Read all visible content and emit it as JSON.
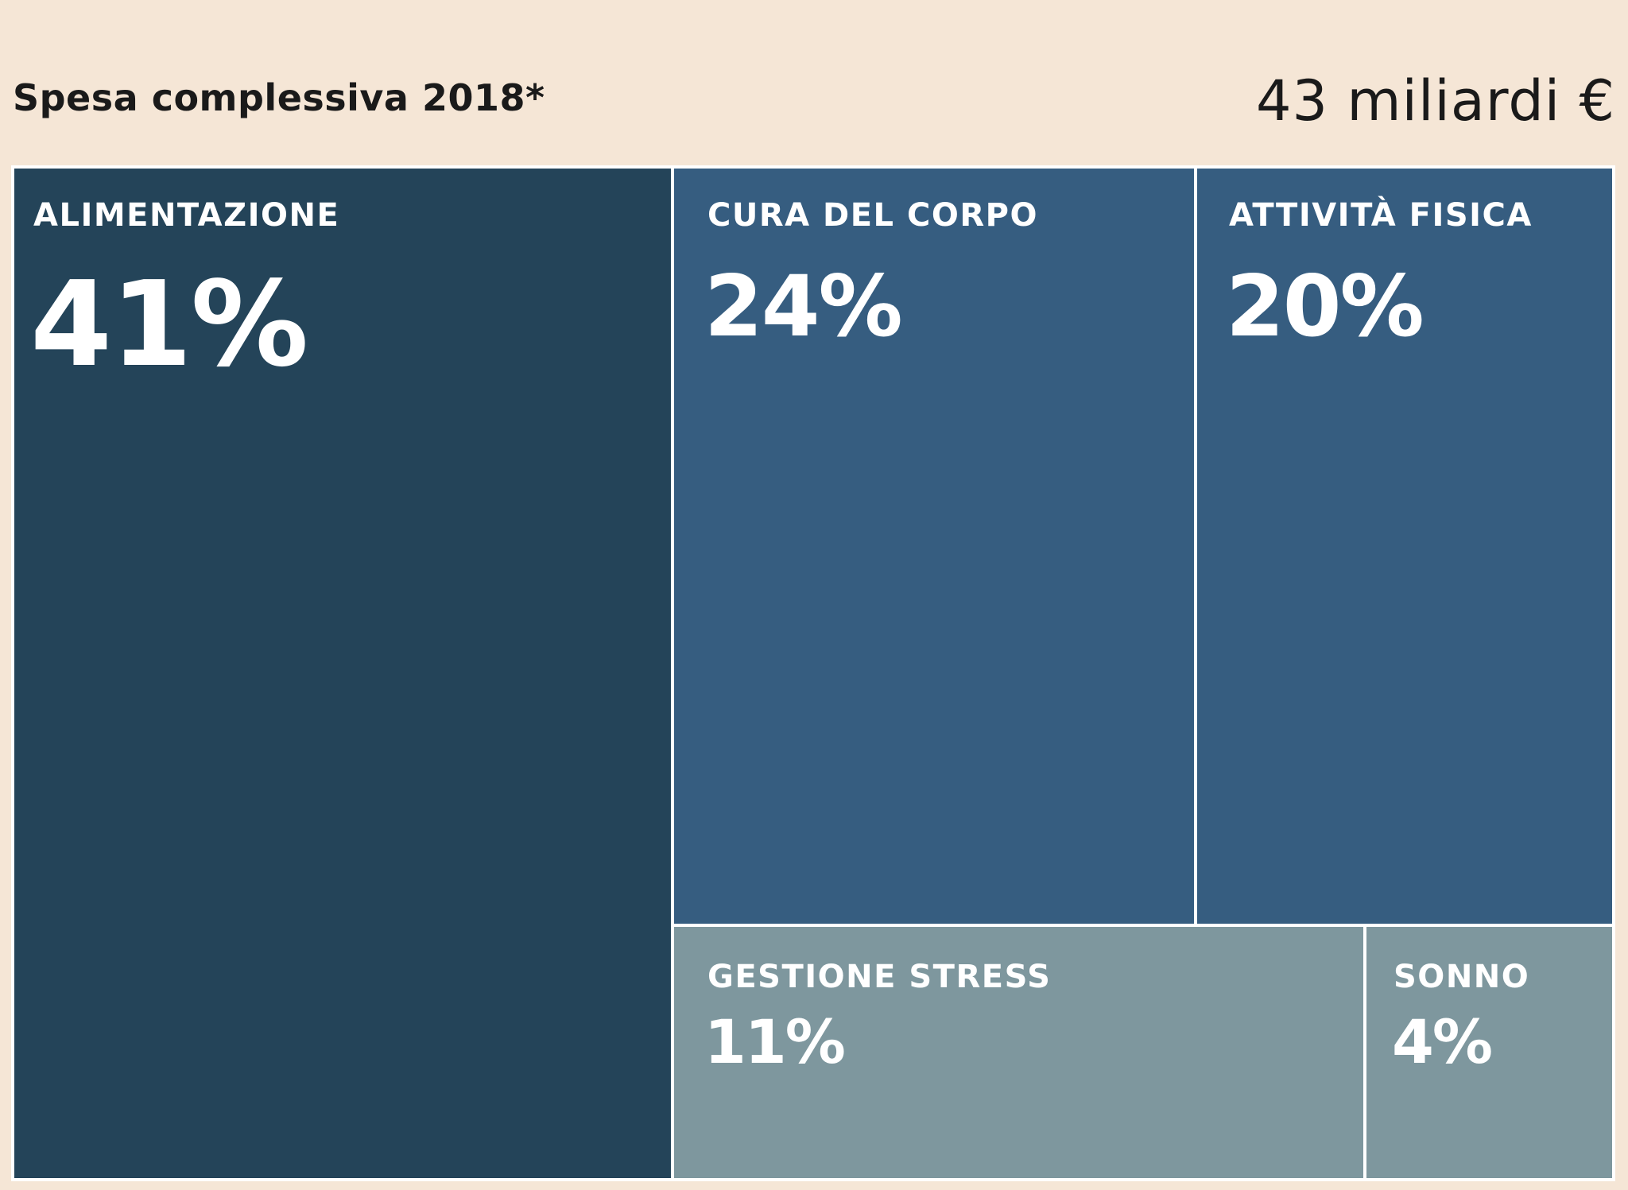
{
  "header": {
    "title": "Spesa complessiva 2018*",
    "total": "43 miliardi €"
  },
  "chart_data": {
    "type": "treemap",
    "title": "Spesa complessiva 2018*",
    "total_label": "43 miliardi €",
    "unit": "%",
    "categories": [
      "ALIMENTAZIONE",
      "CURA DEL CORPO",
      "ATTIVITÀ FISICA",
      "GESTIONE STRESS",
      "SONNO"
    ],
    "values": [
      41,
      24,
      20,
      11,
      4
    ],
    "labels": [
      "41%",
      "24%",
      "20%",
      "11%",
      "4%"
    ],
    "colors": [
      "#244459",
      "#365d80",
      "#365d80",
      "#7e979e",
      "#7e979e"
    ]
  }
}
